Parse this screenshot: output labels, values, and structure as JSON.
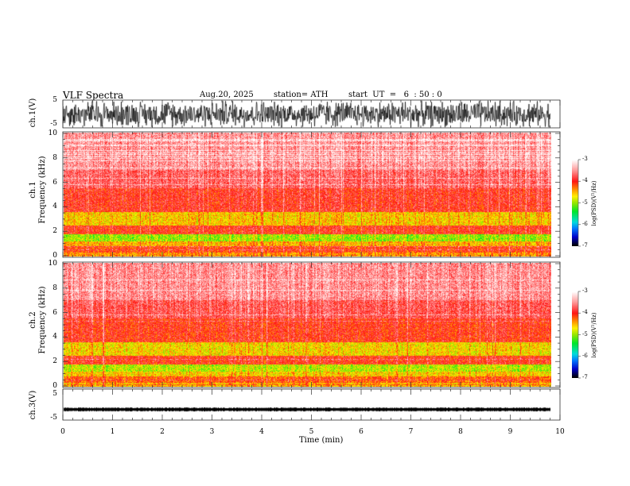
{
  "header": {
    "title": "VLF  Spectra",
    "date": "Aug.20, 2025",
    "station": "station= ATH",
    "start": "start  UT  =   6  : 50 : 0"
  },
  "chart_data": [
    {
      "type": "line",
      "name": "ch1-waveform",
      "ylabel": "ch.1(V)",
      "ylim": [
        -5,
        5
      ],
      "yticks": [
        "5",
        "-5"
      ],
      "xlim": [
        0,
        10
      ],
      "data_extent_min": 9.8,
      "description_values": {
        "amplitude_range": [
          -5,
          5
        ]
      }
    },
    {
      "type": "heatmap",
      "name": "ch1-spectrogram",
      "ylabel": "ch.1\nFrequency  (kHz)",
      "ylabel_lines": [
        "ch.1",
        "Frequency  (kHz)"
      ],
      "ylim": [
        0,
        10
      ],
      "yticks": [
        "0",
        "2",
        "4",
        "6",
        "8",
        "10"
      ],
      "colorbar": {
        "label": "log(PSD)(V²/Hz)",
        "range": [
          -7,
          -3
        ],
        "ticks": [
          "-3",
          "-4",
          "-5",
          "-6",
          "-7"
        ]
      },
      "band_mean_logpsd": [
        {
          "f": [
            0,
            0.3
          ],
          "v": -4.4
        },
        {
          "f": [
            0.3,
            0.8
          ],
          "v": -4.1
        },
        {
          "f": [
            0.8,
            1.2
          ],
          "v": -4.5
        },
        {
          "f": [
            1.2,
            1.8
          ],
          "v": -5.0
        },
        {
          "f": [
            1.8,
            2.5
          ],
          "v": -4.0
        },
        {
          "f": [
            2.5,
            3.6
          ],
          "v": -4.6
        },
        {
          "f": [
            3.6,
            5.5
          ],
          "v": -3.95
        },
        {
          "f": [
            5.5,
            7.0
          ],
          "v": -3.7
        },
        {
          "f": [
            7.0,
            10.0
          ],
          "v": -3.5
        }
      ]
    },
    {
      "type": "heatmap",
      "name": "ch2-spectrogram",
      "ylabel_lines": [
        "ch.2",
        "Frequency  (kHz)"
      ],
      "ylim": [
        0,
        10
      ],
      "yticks": [
        "0",
        "2",
        "4",
        "6",
        "8",
        "10"
      ],
      "colorbar": {
        "label": "log(PSD)(V²/Hz)",
        "range": [
          -7,
          -3
        ],
        "ticks": [
          "-3",
          "-4",
          "-5",
          "-6",
          "-7"
        ]
      },
      "band_mean_logpsd": [
        {
          "f": [
            0,
            0.3
          ],
          "v": -4.5
        },
        {
          "f": [
            0.3,
            0.8
          ],
          "v": -4.2
        },
        {
          "f": [
            0.8,
            1.2
          ],
          "v": -4.6
        },
        {
          "f": [
            1.2,
            1.8
          ],
          "v": -4.9
        },
        {
          "f": [
            1.8,
            2.5
          ],
          "v": -4.0
        },
        {
          "f": [
            2.5,
            3.6
          ],
          "v": -4.65
        },
        {
          "f": [
            3.6,
            5.5
          ],
          "v": -4.0
        },
        {
          "f": [
            5.5,
            7.0
          ],
          "v": -3.75
        },
        {
          "f": [
            7.0,
            10.0
          ],
          "v": -3.5
        }
      ]
    },
    {
      "type": "line",
      "name": "ch3-waveform",
      "ylabel": "ch.3(V)",
      "ylim": [
        -5,
        5
      ],
      "yticks": [
        "5",
        "-5"
      ],
      "level": -1.0
    }
  ],
  "xaxis": {
    "label": "Time  (min)",
    "range": [
      0,
      10
    ],
    "ticks": [
      "0",
      "1",
      "2",
      "3",
      "4",
      "5",
      "6",
      "7",
      "8",
      "9",
      "10"
    ]
  }
}
